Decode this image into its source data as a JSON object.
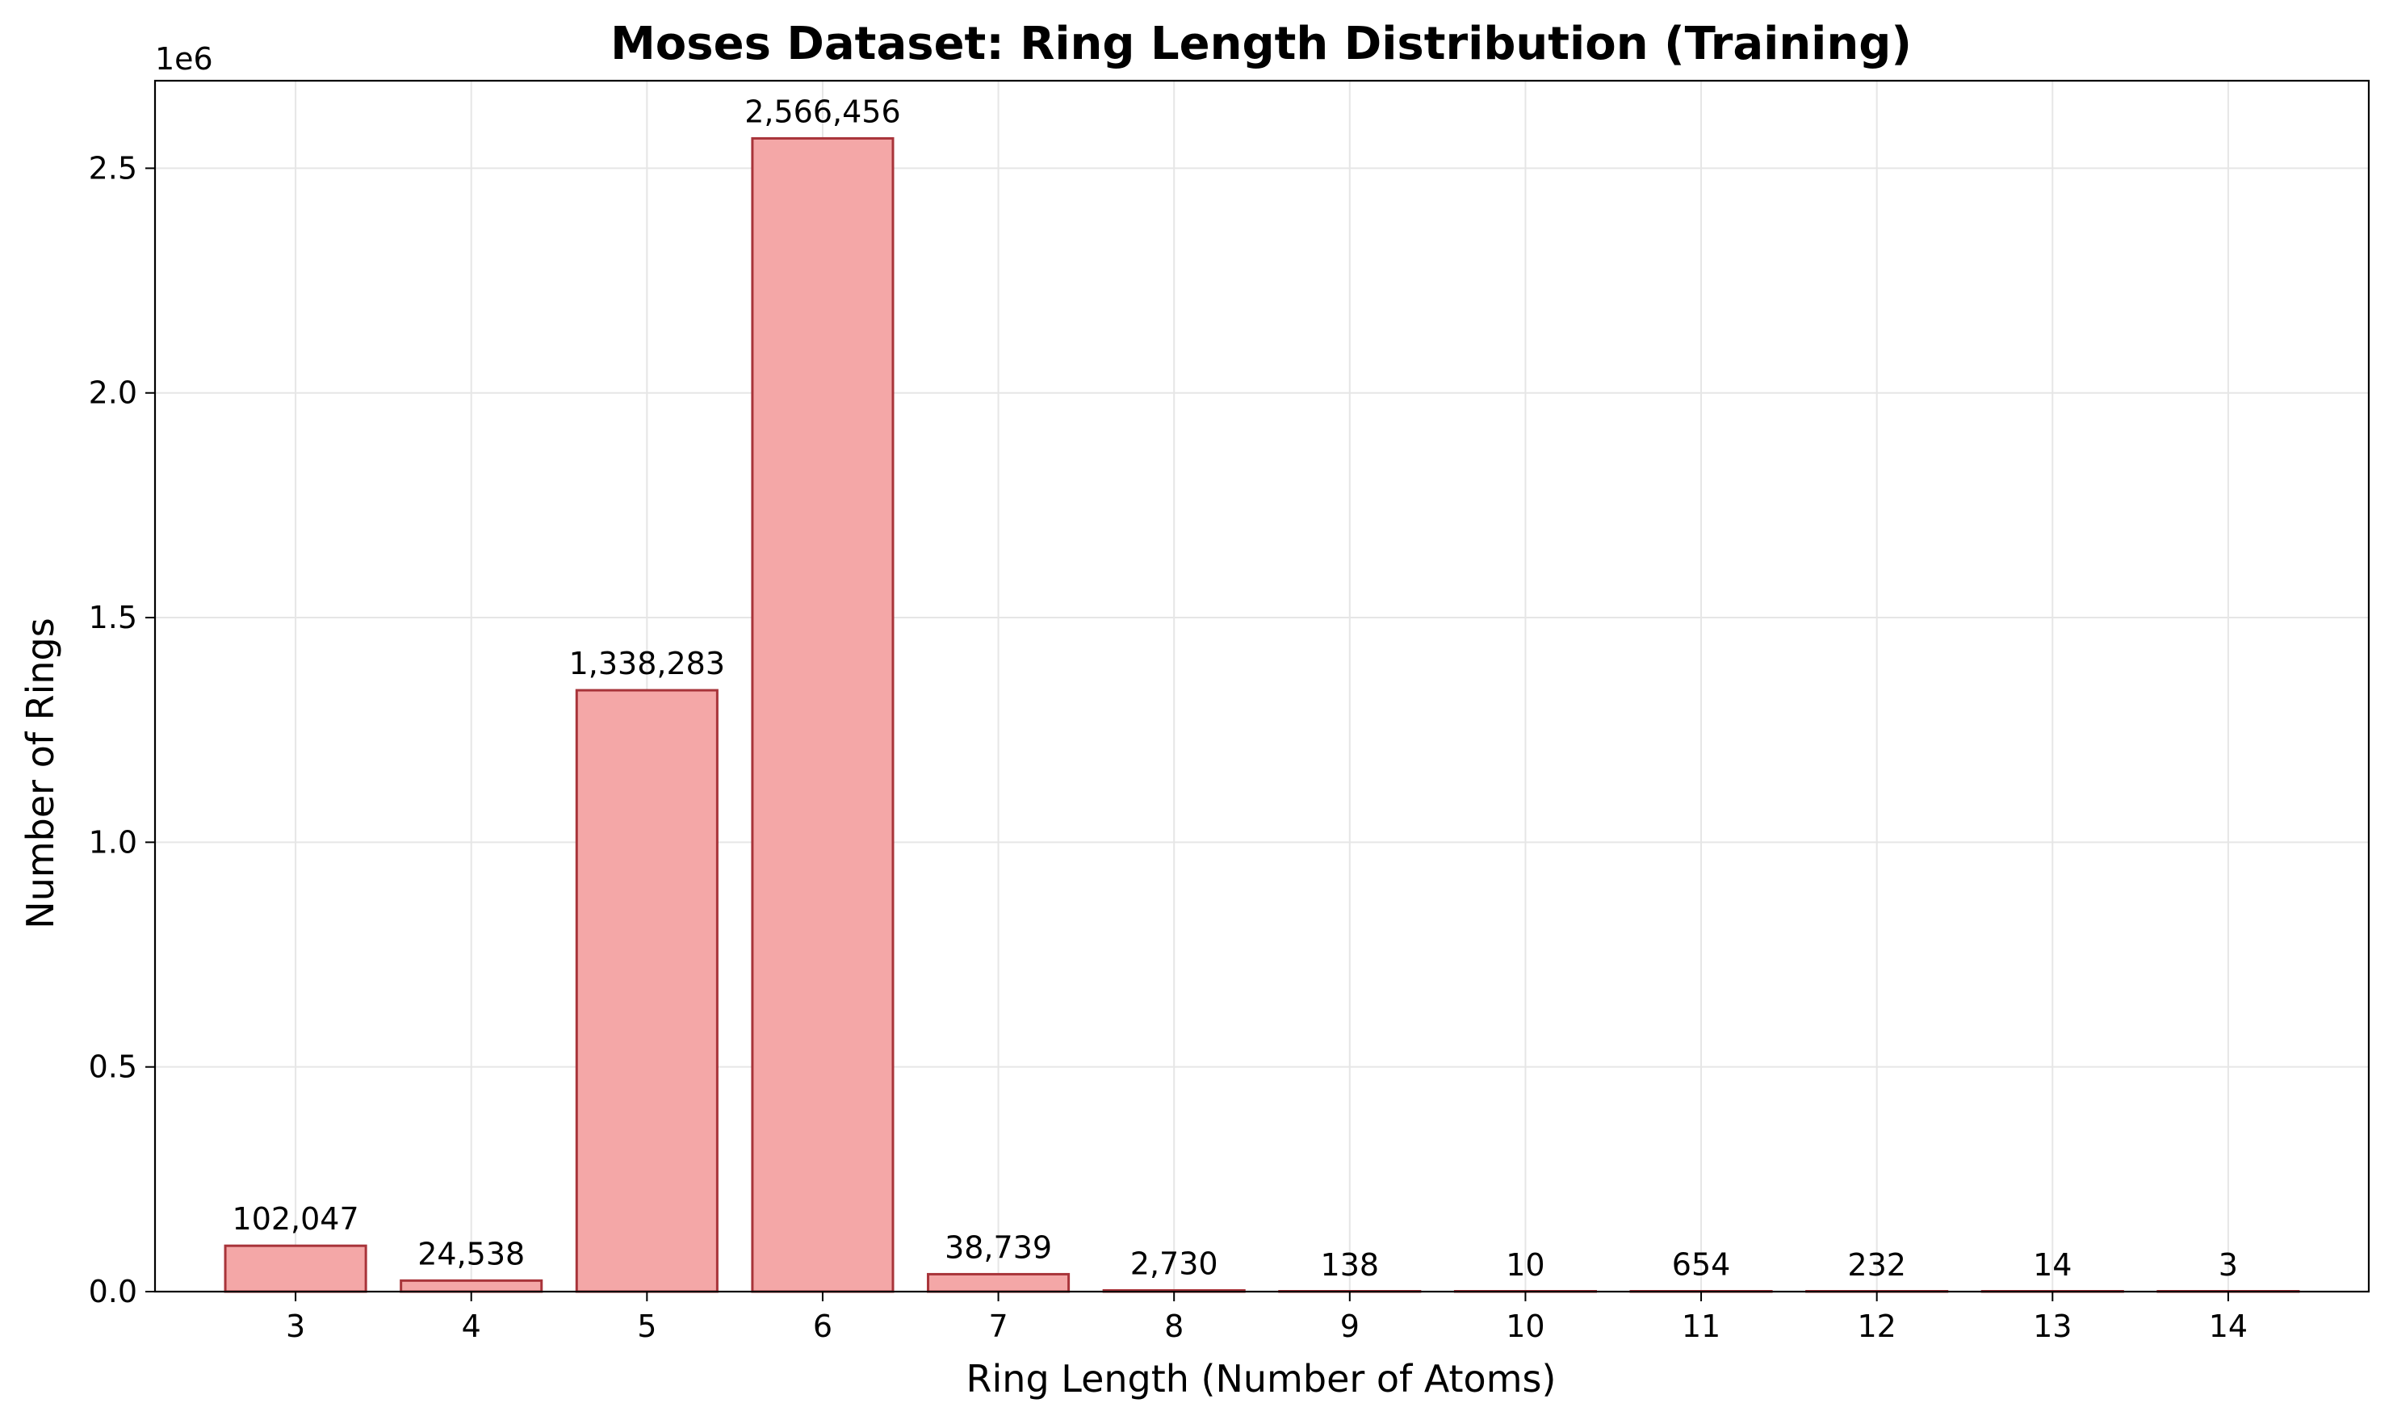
{
  "chart_data": {
    "type": "bar",
    "title": "Moses Dataset: Ring Length Distribution (Training)",
    "xlabel": "Ring Length (Number of Atoms)",
    "ylabel": "Number of Rings",
    "y_multiplier_label": "1e6",
    "categories": [
      "3",
      "4",
      "5",
      "6",
      "7",
      "8",
      "9",
      "10",
      "11",
      "12",
      "13",
      "14"
    ],
    "values": [
      102047,
      24538,
      1338283,
      2566456,
      38739,
      2730,
      138,
      10,
      654,
      232,
      14,
      3
    ],
    "value_labels": [
      "102,047",
      "24,538",
      "1,338,283",
      "2,566,456",
      "38,739",
      "2,730",
      "138",
      "10",
      "654",
      "232",
      "14",
      "3"
    ],
    "ylim": [
      0,
      2694779
    ],
    "yticks": [
      0,
      500000,
      1000000,
      1500000,
      2000000,
      2500000
    ],
    "ytick_labels": [
      "0.0",
      "0.5",
      "1.0",
      "1.5",
      "2.0",
      "2.5"
    ],
    "grid": true,
    "bar_fill": "#f4a7a7",
    "bar_edge": "#a8343a"
  }
}
